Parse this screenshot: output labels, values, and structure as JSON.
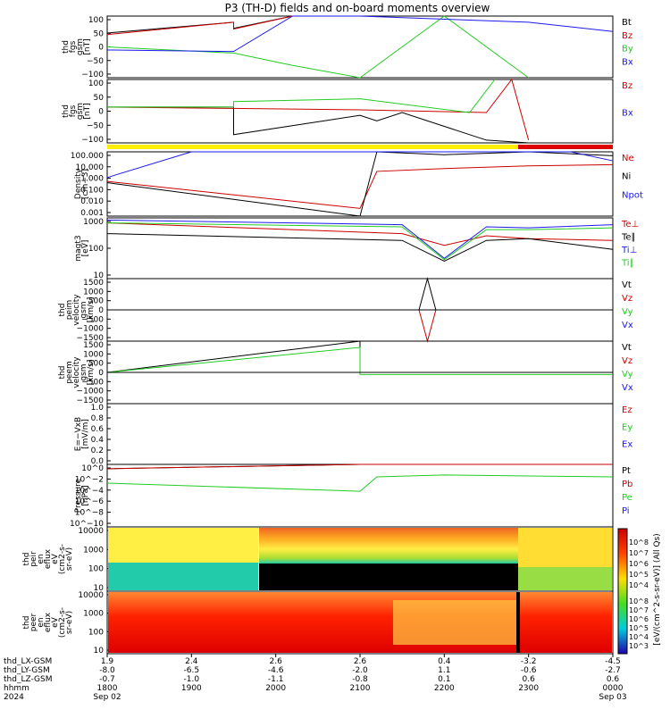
{
  "title": "P3 (TH-D) fields and on-board moments overview",
  "colors": {
    "black": "#000000",
    "red": "#cc0000",
    "green": "#22cc22",
    "blue": "#1a1aee"
  },
  "footer": {
    "row_labels": [
      "thd_LX-GSM",
      "thd_LY-GSM",
      "thd_LZ-GSM",
      "hhmm",
      "2024"
    ],
    "columns": [
      {
        "lx": "1.9",
        "ly": "-8.0",
        "lz": "-0.7",
        "time": "1800",
        "date": "Sep 02"
      },
      {
        "lx": "2.4",
        "ly": "-6.5",
        "lz": "-1.0",
        "time": "1900",
        "date": ""
      },
      {
        "lx": "2.6",
        "ly": "-4.6",
        "lz": "-1.1",
        "time": "2000",
        "date": ""
      },
      {
        "lx": "2.6",
        "ly": "-2.0",
        "lz": "-0.8",
        "time": "2100",
        "date": ""
      },
      {
        "lx": "0.4",
        "ly": "1.1",
        "lz": "0.1",
        "time": "2200",
        "date": ""
      },
      {
        "lx": "-3.2",
        "ly": "-0.6",
        "lz": "0.6",
        "time": "2300",
        "date": ""
      },
      {
        "lx": "-4.5",
        "ly": "-2.7",
        "lz": "0.6",
        "time": "0000",
        "date": "Sep 03"
      }
    ]
  },
  "colorbar": {
    "label": "[eV/(cm^2-s-sr-eV)] (All Qs)",
    "ticks_top": [
      "10^8",
      "10^7",
      "10^6",
      "10^5",
      "10^4"
    ],
    "ticks_bottom": [
      "10^8",
      "10^7",
      "10^6",
      "10^5",
      "10^4",
      "10^3"
    ]
  },
  "chart_data": [
    {
      "type": "line",
      "panel": "fgs",
      "ylabel": [
        "thd",
        "fgs",
        "gsm",
        "[nT]"
      ],
      "ylim": [
        -100,
        100
      ],
      "ticks": [
        "100",
        "50",
        "0",
        "−50",
        "−100"
      ],
      "legend": [
        "Bt",
        "Bz",
        "By",
        "Bx"
      ],
      "series": [
        {
          "name": "Bt",
          "x": [
            18.0,
            19.5,
            19.5,
            20.2,
            21.0,
            22.4,
            22.8
          ],
          "values": [
            45,
            80,
            60,
            100,
            100,
            100,
            100
          ]
        },
        {
          "name": "Bz",
          "x": [
            18.0,
            19.5,
            19.5,
            20.2,
            21.0
          ],
          "values": [
            40,
            80,
            58,
            100,
            100
          ]
        },
        {
          "name": "By",
          "x": [
            18.0,
            19.5,
            20.2,
            21.0,
            22.0,
            23.0
          ],
          "values": [
            0,
            -20,
            -60,
            -100,
            100,
            -100
          ]
        },
        {
          "name": "Bx",
          "x": [
            18.0,
            19.5,
            20.2,
            21.0,
            23.0,
            24.0
          ],
          "values": [
            -10,
            -15,
            100,
            100,
            80,
            50
          ]
        }
      ]
    },
    {
      "type": "line",
      "panel": "fgs-zoom",
      "ylabel": [
        "thd",
        "fgs",
        "gsm",
        "[nT]"
      ],
      "ylim": [
        -130,
        100
      ],
      "ticks": [
        "100",
        "50",
        "0",
        "−50",
        "−100"
      ],
      "legend": [
        "Bz",
        "Bx"
      ],
      "series": [
        {
          "name": "black",
          "x": [
            18.0,
            19.5,
            19.5,
            21.0,
            21.2,
            21.5,
            22.5,
            23.0
          ],
          "values": [
            0,
            0,
            -100,
            -30,
            -50,
            -20,
            -120,
            -130
          ]
        },
        {
          "name": "Bz",
          "x": [
            18.0,
            19.5,
            21.0,
            22.5,
            22.8,
            23.0
          ],
          "values": [
            0,
            -5,
            -10,
            -20,
            100,
            -120
          ]
        },
        {
          "name": "green",
          "x": [
            18.0,
            19.5,
            19.5,
            21.0,
            22.3,
            22.6
          ],
          "values": [
            0,
            0,
            20,
            30,
            -20,
            100
          ]
        }
      ]
    },
    {
      "type": "line",
      "panel": "density",
      "ylabel": [
        "Density",
        "[cm−3]"
      ],
      "ylim": [
        0.001,
        100
      ],
      "scale": "log",
      "ticks": [
        "100.000",
        "10.000",
        "1.000",
        "0.100",
        "0.010",
        "0.001"
      ],
      "legend": [
        "Ne",
        "Ni",
        "Npot"
      ],
      "series": [
        {
          "name": "Ne",
          "x": [
            18.0,
            21.0,
            21.2,
            22.0,
            23.0,
            24.0
          ],
          "values": [
            0.5,
            0.004,
            3,
            5,
            8,
            10
          ]
        },
        {
          "name": "Ni",
          "x": [
            18.0,
            21.0,
            21.2,
            22.0,
            23.0,
            24.0
          ],
          "values": [
            0.4,
            0.001,
            100,
            60,
            100,
            50
          ]
        },
        {
          "name": "Npot",
          "x": [
            18.0,
            19.0,
            21.2,
            23.5,
            24.0
          ],
          "values": [
            1,
            100,
            100,
            100,
            20
          ]
        }
      ]
    },
    {
      "type": "line",
      "panel": "temperature",
      "ylabel": [
        "magt3",
        "[eV]"
      ],
      "ylim": [
        10,
        5000
      ],
      "scale": "log",
      "ticks": [
        "1000",
        "100",
        "10"
      ],
      "legend": [
        "Te⊥",
        "Te∥",
        "Ti⊥",
        "Ti∥"
      ],
      "series": [
        {
          "name": "Te⊥",
          "x": [
            18.0,
            21.5,
            22.0,
            22.5,
            23.0,
            24.0
          ],
          "values": [
            3000,
            1000,
            300,
            800,
            600,
            500
          ]
        },
        {
          "name": "Te∥",
          "x": [
            18.0,
            21.5,
            22.0,
            22.5,
            23.0,
            24.0
          ],
          "values": [
            1000,
            500,
            60,
            500,
            600,
            200
          ]
        },
        {
          "name": "Ti⊥",
          "x": [
            18.0,
            21.5,
            22.0,
            22.5,
            23.0,
            24.0
          ],
          "values": [
            4000,
            2500,
            80,
            2000,
            1800,
            2500
          ]
        },
        {
          "name": "Ti∥",
          "x": [
            18.0,
            21.5,
            22.0,
            22.5,
            23.0,
            24.0
          ],
          "values": [
            3000,
            2000,
            70,
            1500,
            1500,
            1800
          ]
        }
      ]
    },
    {
      "type": "line",
      "panel": "ion-velocity",
      "ylabel": [
        "thd",
        "peim",
        "velocity",
        "gsm",
        "[km/s]"
      ],
      "ylim": [
        -1500,
        1500
      ],
      "ticks": [
        "1500",
        "1000",
        "500",
        "0",
        "−500",
        "−1000",
        "−1500"
      ],
      "legend": [
        "Vt",
        "Vz",
        "Vy",
        "Vx"
      ],
      "series": [
        {
          "name": "Vt",
          "x": [
            18.0,
            21.7,
            21.8,
            21.9,
            24.0
          ],
          "values": [
            0,
            0,
            1500,
            0,
            0
          ]
        },
        {
          "name": "Vz",
          "x": [
            18.0,
            21.7,
            21.8,
            21.9,
            24.0
          ],
          "values": [
            0,
            0,
            -1500,
            0,
            0
          ]
        }
      ]
    },
    {
      "type": "line",
      "panel": "electron-velocity",
      "ylabel": [
        "thd",
        "peem",
        "velocity",
        "gsm",
        "[km/s]"
      ],
      "ylim": [
        -1500,
        1500
      ],
      "ticks": [
        "1500",
        "1000",
        "500",
        "0",
        "−500",
        "−1000",
        "−1500"
      ],
      "legend": [
        "Vt",
        "Vz",
        "Vy",
        "Vx"
      ],
      "series": [
        {
          "name": "Vt",
          "x": [
            18.0,
            21.0,
            21.0,
            24.0
          ],
          "values": [
            0,
            1500,
            0,
            0
          ]
        },
        {
          "name": "Vy",
          "x": [
            18.0,
            21.0,
            21.0,
            24.0
          ],
          "values": [
            0,
            1200,
            -100,
            -100
          ]
        }
      ]
    },
    {
      "type": "line",
      "panel": "efield",
      "ylabel": [
        "E=−VxB",
        "[mV/m]"
      ],
      "ylim": [
        0,
        1.0
      ],
      "ticks": [
        "1.0",
        "0.8",
        "0.6",
        "0.4",
        "0.2",
        "0.0"
      ],
      "legend": [
        "Ez",
        "Ey",
        "Ex"
      ],
      "series": []
    },
    {
      "type": "line",
      "panel": "pressure",
      "ylabel": [
        "Pressure",
        "[nPa]"
      ],
      "ylim": [
        1e-10,
        1
      ],
      "scale": "log",
      "ticks": [
        "10^0",
        "10^−2",
        "10^−4",
        "10^−6",
        "10^−8",
        "10^−10"
      ],
      "legend": [
        "Pt",
        "Pb",
        "Pe",
        "Pi"
      ],
      "series": [
        {
          "name": "Pt",
          "x": [
            18.0,
            21.0,
            21.2,
            22.0,
            23.0,
            24.0
          ],
          "values": [
            0.2,
            1,
            1,
            1,
            1,
            1
          ]
        },
        {
          "name": "Pb",
          "x": [
            18.0,
            21.0,
            21.2,
            24.0
          ],
          "values": [
            0.2,
            1,
            1,
            1
          ]
        },
        {
          "name": "Pe",
          "x": [
            18.0,
            21.0,
            21.2,
            22.0,
            24.0
          ],
          "values": [
            0.001,
            5e-05,
            0.01,
            0.02,
            0.01
          ]
        }
      ]
    },
    {
      "type": "heatmap",
      "panel": "ion-energy-flux",
      "ylabel": [
        "thd",
        "peir",
        "en",
        "eflux",
        "eV",
        "(cm2-s-",
        "sr-eV)"
      ],
      "ticks": [
        "10000",
        "1000",
        "100",
        "10"
      ]
    },
    {
      "type": "heatmap",
      "panel": "electron-energy-flux",
      "ylabel": [
        "thd",
        "peer",
        "en",
        "eflux",
        "eV",
        "(cm2-s-",
        "sr-eV)"
      ],
      "ticks": [
        "10000",
        "1000",
        "100",
        "10"
      ]
    }
  ]
}
